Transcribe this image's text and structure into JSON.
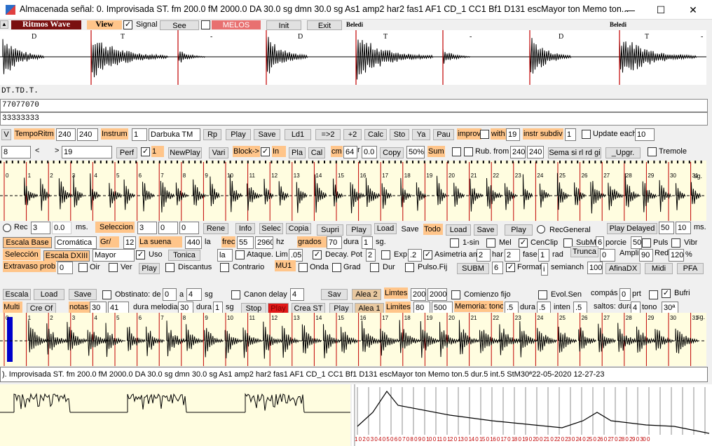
{
  "window": {
    "title": "Almacenada señal: 0. Improvisada ST. fm 200.0 fM 2000.0 DA 30.0 sg dmn 30.0 sg As1 amp2 har2 fas1 AF1 CD_1 CC1 Bf1 D131 escMayor      ton Memo ton...",
    "minimize": "—",
    "maximize": "☐",
    "close": "✕"
  },
  "toolbar1": {
    "small_btn": "▲",
    "ritmos": "Ritmos Wave",
    "view": "View",
    "signal": "Signal",
    "see": "See",
    "melos": "MELOS",
    "init": "Init",
    "exit": "Exit",
    "beledi1": "Beledi",
    "beledi2": "Beledi"
  },
  "wave1": {
    "labels": [
      "D",
      "T",
      "-",
      "D",
      "T",
      "-",
      "D",
      "T",
      "-"
    ]
  },
  "text_rows": {
    "row1": "DT.TD.T.",
    "row2": "77077070",
    "row3": "33333333"
  },
  "ctrl1": {
    "v": "V",
    "tempo_ritm": "TempoRitm",
    "tempo1": "240",
    "tempo2": "240",
    "instrum": "Instrum",
    "instrum_num": "1",
    "instrum_name": "Darbuka TM",
    "rp": "Rp",
    "play": "Play",
    "save": "Save",
    "ld1": "Ld1",
    "to2": "=>2",
    "plus2": "+2",
    "calc": "Calc",
    "sto": "Sto",
    "ya": "Ya",
    "pau": "Pau",
    "improv": "improv",
    "with": "with",
    "with_val": "19",
    "instr_subdiv": "instr subdiv",
    "subdiv_val": "1",
    "update_each": "Update each",
    "update_val": "10"
  },
  "ctrl2": {
    "n8": "8",
    "lt": "<",
    "gt": ">",
    "n19": "19",
    "perf": "Perf",
    "one": "1",
    "newplay": "NewPlay",
    "vari": "Vari",
    "block": "Block->",
    "in": "In",
    "pla": "Pla",
    "cal": "Cal",
    "cm": "cm",
    "cm_val": "64",
    "r_lab": "r",
    "r_val": "0.0",
    "copy": "Copy",
    "pct": "50%",
    "sum": "Sum",
    "rub_from": "Rub. from",
    "rub1": "240",
    "rub2": "240",
    "sema": "Sema si rl rd gi",
    "upgr": "_Upgr.",
    "tremole": "Tremole"
  },
  "wave2": {
    "numbers": [
      "0",
      "1",
      "2",
      "3",
      "4",
      "5",
      "6",
      "7",
      "8",
      "9",
      "10",
      "11",
      "12",
      "13",
      "14",
      "15",
      "16",
      "17",
      "18",
      "19",
      "20",
      "21",
      "22",
      "23",
      "24",
      "25",
      "26",
      "27",
      "28",
      "29",
      "30",
      "31"
    ],
    "sg": "sg."
  },
  "ctrl3": {
    "rec": "Rec",
    "rec_val": "3",
    "ms_val": "0.0",
    "ms": "ms.",
    "seleccion": "Seleccion",
    "sel1": "3",
    "sel2": "0",
    "sel3": "0",
    "rene": "Rene",
    "info": "Info",
    "selec": "Selec",
    "copia": "Copia",
    "supri": "Supri",
    "play": "Play",
    "load": "Load",
    "save": "Save",
    "todo": "Todo",
    "load2": "Load",
    "save2": "Save",
    "play2": "Play",
    "recgeneral": "RecGeneral",
    "play_delayed": "Play Delayed",
    "pd1": "50",
    "pd2": "10",
    "ms2": "ms."
  },
  "ctrl4": {
    "escala_base": "Escala Base",
    "cromatica": "Cromática",
    "gr": "Gr/",
    "gr_val": "12",
    "la_suena": "La suena",
    "la_val": "440",
    "la": "la",
    "frec": "frec",
    "frec1": "55",
    "frec2": "2960",
    "hz": "hz",
    "grados": "grados",
    "grados_val": "70",
    "dura": "dura",
    "dura_val": "1",
    "sg": "sg.",
    "one_sin": "1-sin",
    "mel": "Mel",
    "cenclip": "CenClip",
    "subm": "SubM",
    "subm_val": "6",
    "porcie": "porcie",
    "porcie_val": "50",
    "puls": "Puls",
    "vibr": "Vibr"
  },
  "ctrl5": {
    "seleccion": "Selección",
    "escala_dxiii": "Escala DXIII",
    "mayor": "Mayor",
    "uso": "Uso",
    "tonica": "Tonica",
    "la": "la",
    "ataque": "Ataque. Lim",
    "ataque_val": ".05",
    "decay": "Decay. Pot",
    "decay_val": "2",
    "exp": "Exp",
    "exp_val": ".2",
    "asimetria": "Asimetria am",
    "asim_val": "2",
    "har": "har",
    "har_val": "2",
    "fase": "fase",
    "fase_val": "1",
    "rad": "rad",
    "trunca": "Trunca",
    "trunca_val": "0",
    "ampli": "Ampli",
    "ampli_val": "90",
    "red": "Red",
    "red_val": "120",
    "pct": "%"
  },
  "ctrl6": {
    "extravaso": "Extravaso prob",
    "extra_val": "0",
    "oir": "Oir",
    "ver": "Ver",
    "play": "Play",
    "discantus": "Discantus",
    "contrario": "Contrario",
    "mu1": "MU1",
    "onda": "Onda",
    "grad": "Grad",
    "dur": "Dur",
    "pulso": "Pulso.Fij",
    "subm": "SUBM",
    "subm_val": "6",
    "format": "Format",
    "format_val": "i",
    "semianch": "semianch",
    "semianch_val": "100",
    "afinadx": "AfinaDX",
    "midi": "Midi",
    "pfa": "PFA"
  },
  "ctrl7": {
    "escala": "Escala",
    "load": "Load",
    "save": "Save",
    "obstinato": "Obstinato: de",
    "obs_val": "0",
    "a": "a",
    "a_val": "4",
    "sg": "sg",
    "canon": "Canon  delay",
    "canon_val": "4",
    "sav": "Sav",
    "alea2": "Alea 2",
    "limtes": "Limtes",
    "lim1": "200",
    "lim2": "2000",
    "comienzo": "Comienzo fijo",
    "evol": "Evol.Sen",
    "compas": "compás",
    "compas_val": "0",
    "prt": "prt",
    "bufri": "Bufri"
  },
  "ctrl8": {
    "multi": "Multi",
    "cre_of": "Cre Of",
    "notas": "notas",
    "notas1": "30",
    "notas2": "41",
    "dura_melodia": "dura melodia",
    "dm_val": "30",
    "dura": "dura",
    "dura_val": "1",
    "sg": "sg",
    "stop": "Stop",
    "play_red": "Play",
    "crea_st": "Crea ST",
    "play": "Play",
    "alea1": "Alea 1",
    "limites": "Limites",
    "lim1": "80",
    "lim2": "500",
    "memoria": "Memoria: tono",
    "mem_val": ".5",
    "dura2": "dura",
    "dura2_val": ".5",
    "inten": "inten",
    "inten_val": ".5",
    "saltos": "saltos: dura",
    "saltos_val": "4",
    "tono": "tono",
    "tono_val": "30ª"
  },
  "wave3": {
    "numbers": [
      "0",
      "1",
      "2",
      "3",
      "4",
      "5",
      "6",
      "7",
      "8",
      "9",
      "10",
      "11",
      "12",
      "13",
      "14",
      "15",
      "16",
      "17",
      "18",
      "19",
      "20",
      "21",
      "22",
      "23",
      "24",
      "25",
      "26",
      "27",
      "28",
      "29",
      "30",
      "31"
    ],
    "sg": "sg."
  },
  "status": {
    "text": "). Improvisada ST. fm 200.0 fM 2000.0 DA 30.0 sg dmn 30.0 sg As1 amp2 har2 fas1 AF1 CD_1 CC1 Bf1 D131 escMayor      ton Memo ton.5 dur.5 int.5 StM30ª22-05-2020 12-27-23"
  },
  "bottom": {
    "scale_text": "1 0 2 0 3 0 4 0 5 0 6 0 7 0 8 0 9 0 10 0 11 0 12 0 13 0 14 0 15 0 16 0 17 0 18 0 19 0 20 0 21 0 22 0 23 0 24 0 25 0 26 0 27 0 28 0 29 0 30 0"
  },
  "colors": {
    "orange": "#ffc58a",
    "red_line": "#c00000",
    "dark_red": "#7a1010",
    "blue_bar": "#0000cc",
    "yellow_bg": "#fffde0"
  }
}
